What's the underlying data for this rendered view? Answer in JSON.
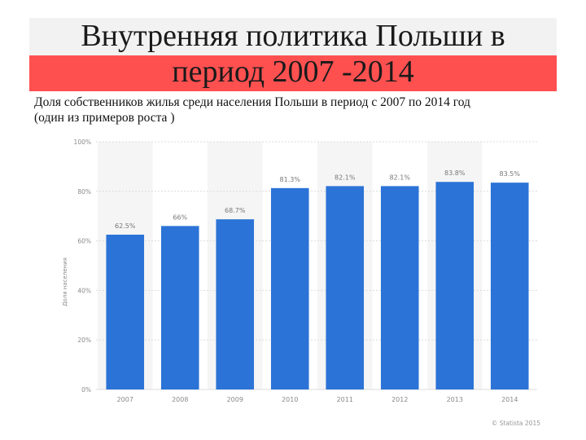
{
  "header": {
    "title_line1": "Внутренняя политика Польши в",
    "title_line2": "период 2007 -2014",
    "subtitle_line1": "Доля собственников жилья среди населения Польши в период с 2007 по 2014 год",
    "subtitle_line2": "(один из примеров роста )"
  },
  "credit": "© Statista 2015",
  "colors": {
    "bar": "#2b73d6",
    "title_band_red": "#ff5050",
    "title_band_gray": "#f2f2f2",
    "alt_column": "#f5f5f5",
    "grid": "#dcdcdc",
    "axis_text": "#8a8a8a"
  },
  "chart_data": {
    "type": "bar",
    "categories": [
      "2007",
      "2008",
      "2009",
      "2010",
      "2011",
      "2012",
      "2013",
      "2014"
    ],
    "values": [
      62.5,
      66,
      68.7,
      81.3,
      82.1,
      82.1,
      83.8,
      83.5
    ],
    "data_labels": [
      "62.5%",
      "66%",
      "68.7%",
      "81.3%",
      "82.1%",
      "82.1%",
      "83.8%",
      "83.5%"
    ],
    "ylabel": "Доля населения",
    "ylim": [
      0,
      100
    ],
    "yticks": [
      0,
      20,
      40,
      60,
      80,
      100
    ],
    "ytick_labels": [
      "0%",
      "20%",
      "40%",
      "60%",
      "80%",
      "100%"
    ],
    "grid": true,
    "legend": "none"
  }
}
